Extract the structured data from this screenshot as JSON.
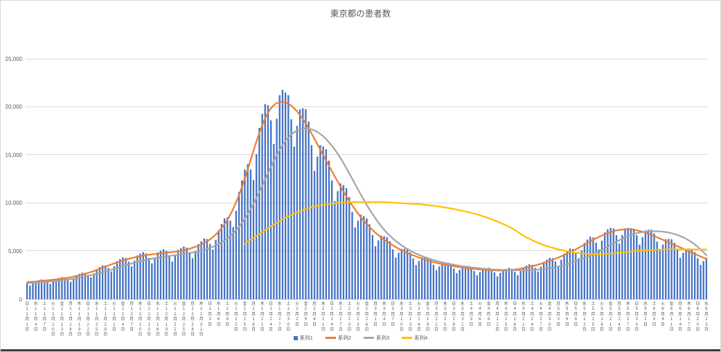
{
  "chart": {
    "title": "東京都の患者数",
    "text_color": "#595959",
    "grid_color": "#d9d9d9",
    "axis_color": "#d9d9d9",
    "border_color": "#d6d6d6",
    "bottom_edge_color": "#3b3b3b",
    "y_axis_labels": [
      "0",
      "5,000",
      "10,000",
      "15,000",
      "20,000",
      "25,000"
    ]
  },
  "chart_data": {
    "type": "bar+line",
    "title": "東京都の患者数",
    "ylim": [
      0,
      25000
    ],
    "y_ticks": [
      0,
      5000,
      10000,
      15000,
      20000,
      25000
    ],
    "grid": true,
    "legend_position": "bottom",
    "x_unit": "day",
    "x_tick_interval_days": 3,
    "x_ticks": [
      [
        "日",
        11,
        1
      ],
      [
        "水",
        11,
        4
      ],
      [
        "土",
        11,
        7
      ],
      [
        "火",
        11,
        10
      ],
      [
        "金",
        11,
        13
      ],
      [
        "月",
        11,
        16
      ],
      [
        "木",
        11,
        19
      ],
      [
        "日",
        11,
        22
      ],
      [
        "水",
        11,
        25
      ],
      [
        "土",
        11,
        28
      ],
      [
        "火",
        12,
        1
      ],
      [
        "金",
        12,
        4
      ],
      [
        "月",
        12,
        7
      ],
      [
        "木",
        12,
        10
      ],
      [
        "日",
        12,
        13
      ],
      [
        "水",
        12,
        16
      ],
      [
        "土",
        12,
        19
      ],
      [
        "火",
        12,
        22
      ],
      [
        "金",
        12,
        25
      ],
      [
        "月",
        12,
        28
      ],
      [
        "木",
        12,
        31
      ],
      [
        "日",
        1,
        3
      ],
      [
        "水",
        1,
        6
      ],
      [
        "土",
        1,
        9
      ],
      [
        "火",
        1,
        12
      ],
      [
        "金",
        1,
        15
      ],
      [
        "月",
        1,
        18
      ],
      [
        "木",
        1,
        21
      ],
      [
        "日",
        1,
        24
      ],
      [
        "水",
        1,
        27
      ],
      [
        "土",
        1,
        30
      ],
      [
        "火",
        2,
        2
      ],
      [
        "金",
        2,
        5
      ],
      [
        "月",
        2,
        8
      ],
      [
        "木",
        2,
        11
      ],
      [
        "日",
        2,
        14
      ],
      [
        "水",
        2,
        17
      ],
      [
        "土",
        2,
        20
      ],
      [
        "火",
        2,
        23
      ],
      [
        "金",
        2,
        26
      ],
      [
        "月",
        3,
        1
      ],
      [
        "木",
        3,
        4
      ],
      [
        "日",
        3,
        7
      ],
      [
        "水",
        3,
        10
      ],
      [
        "土",
        3,
        13
      ],
      [
        "火",
        3,
        16
      ],
      [
        "金",
        3,
        19
      ],
      [
        "月",
        3,
        22
      ],
      [
        "木",
        3,
        25
      ],
      [
        "日",
        3,
        28
      ],
      [
        "水",
        3,
        31
      ],
      [
        "土",
        4,
        3
      ],
      [
        "火",
        4,
        6
      ],
      [
        "金",
        4,
        9
      ],
      [
        "月",
        4,
        12
      ],
      [
        "木",
        4,
        15
      ],
      [
        "日",
        4,
        18
      ],
      [
        "水",
        4,
        21
      ],
      [
        "土",
        4,
        24
      ],
      [
        "火",
        4,
        27
      ],
      [
        "金",
        4,
        30
      ],
      [
        "月",
        5,
        3
      ],
      [
        "木",
        5,
        6
      ],
      [
        "日",
        5,
        9
      ],
      [
        "水",
        5,
        12
      ],
      [
        "土",
        5,
        15
      ],
      [
        "火",
        5,
        18
      ],
      [
        "金",
        5,
        21
      ],
      [
        "月",
        5,
        24
      ],
      [
        "木",
        5,
        27
      ],
      [
        "日",
        5,
        30
      ],
      [
        "水",
        6,
        2
      ],
      [
        "土",
        6,
        5
      ],
      [
        "火",
        6,
        8
      ],
      [
        "金",
        6,
        11
      ],
      [
        "月",
        6,
        14
      ],
      [
        "木",
        6,
        17
      ],
      [
        "日",
        6,
        20
      ],
      [
        "水",
        6,
        23
      ]
    ],
    "bar_series": {
      "name": "系列1",
      "color": "#4472C4",
      "x_step_days": 1,
      "values": [
        1670,
        1450,
        1690,
        1910,
        2000,
        2070,
        2030,
        1840,
        1610,
        1890,
        2150,
        2240,
        2320,
        2290,
        2090,
        1840,
        2180,
        2510,
        2650,
        2790,
        2770,
        2560,
        2280,
        2710,
        3140,
        3360,
        3550,
        3540,
        3270,
        2910,
        3450,
        3970,
        4190,
        4370,
        4300,
        3920,
        3440,
        4020,
        4570,
        4770,
        4910,
        4780,
        4320,
        3750,
        4340,
        4890,
        5070,
        5200,
        5040,
        4540,
        3930,
        4550,
        5150,
        5350,
        5510,
        5390,
        4900,
        4280,
        5030,
        5750,
        6040,
        6340,
        6270,
        5770,
        5170,
        6190,
        7210,
        7840,
        8420,
        8530,
        8180,
        7520,
        9200,
        11160,
        12370,
        13500,
        14040,
        13490,
        12400,
        15090,
        17820,
        19290,
        20300,
        20180,
        18600,
        16160,
        18770,
        21220,
        21760,
        21500,
        21220,
        18720,
        15890,
        18030,
        19740,
        19860,
        19760,
        18480,
        16030,
        13360,
        14840,
        16030,
        15900,
        15590,
        14420,
        12370,
        10210,
        11250,
        12050,
        11870,
        11560,
        10610,
        9080,
        7470,
        8190,
        8790,
        8660,
        8420,
        7800,
        6700,
        5520,
        6130,
        6630,
        6570,
        6480,
        6030,
        5210,
        4350,
        4850,
        5250,
        5270,
        5220,
        4890,
        4260,
        3570,
        4000,
        4380,
        4400,
        4370,
        4130,
        3610,
        3040,
        3430,
        3780,
        3820,
        3830,
        3640,
        3210,
        2720,
        3080,
        3400,
        3460,
        3490,
        3330,
        2950,
        2510,
        2850,
        3180,
        3250,
        3290,
        3150,
        2810,
        2400,
        2760,
        3090,
        3180,
        3280,
        3190,
        2880,
        2520,
        2940,
        3350,
        3520,
        3650,
        3590,
        3290,
        2890,
        3400,
        3910,
        4130,
        4320,
        4280,
        3940,
        3480,
        4120,
        4760,
        5040,
        5290,
        5250,
        4840,
        4290,
        5090,
        5870,
        6220,
        6520,
        6450,
        5910,
        5200,
        6120,
        6970,
        7300,
        7420,
        7370,
        6670,
        5800,
        6690,
        7380,
        7440,
        7400,
        7360,
        6700,
        5690,
        6470,
        7160,
        7240,
        7250,
        6860,
        6010,
        5070,
        5700,
        6250,
        6290,
        6260,
        5890,
        5150,
        4320,
        4850,
        5290,
        5300,
        5260,
        4920,
        4280,
        3570,
        3990,
        4330
      ]
    },
    "line_series": [
      {
        "name": "系列2",
        "color": "#ED7D31",
        "x_step_days": 3,
        "values": [
          1800,
          1850,
          1950,
          2050,
          2150,
          2300,
          2500,
          2750,
          3050,
          3400,
          3750,
          4050,
          4300,
          4500,
          4650,
          4750,
          4850,
          4950,
          5100,
          5350,
          5700,
          6200,
          7000,
          8200,
          10000,
          12500,
          15500,
          18200,
          20000,
          20600,
          20400,
          19600,
          18300,
          16700,
          15000,
          13300,
          11700,
          10200,
          8900,
          7800,
          6900,
          6200,
          5600,
          5100,
          4700,
          4350,
          4050,
          3800,
          3600,
          3450,
          3300,
          3200,
          3100,
          3050,
          3000,
          3000,
          3100,
          3250,
          3450,
          3700,
          4000,
          4350,
          4750,
          5200,
          5700,
          6200,
          6650,
          7000,
          7250,
          7300,
          7200,
          6950,
          6600,
          6200,
          5800,
          5400,
          5000,
          4600,
          4200
        ]
      },
      {
        "name": "系列3",
        "color": "#A5A5A5",
        "x_step_days": 3,
        "values": [
          1700,
          1750,
          1820,
          1900,
          1990,
          2100,
          2250,
          2430,
          2650,
          2900,
          3180,
          3460,
          3730,
          3970,
          4170,
          4340,
          4480,
          4600,
          4720,
          4860,
          5050,
          5330,
          5720,
          6300,
          7150,
          8350,
          9900,
          11800,
          13800,
          15600,
          16900,
          17600,
          17800,
          17600,
          17000,
          16000,
          14700,
          13100,
          11400,
          9800,
          8400,
          7200,
          6300,
          5600,
          5050,
          4620,
          4280,
          4000,
          3780,
          3600,
          3450,
          3330,
          3230,
          3150,
          3090,
          3050,
          3030,
          3030,
          3060,
          3120,
          3220,
          3400,
          3650,
          3950,
          4300,
          4700,
          5150,
          5650,
          6150,
          6600,
          6900,
          7050,
          7100,
          7050,
          6900,
          6600,
          6150,
          5500,
          4600
        ]
      },
      {
        "name": "系列4",
        "color": "#FFC000",
        "x_step_days": 3,
        "values": [
          null,
          null,
          null,
          null,
          null,
          null,
          null,
          null,
          null,
          null,
          null,
          null,
          null,
          null,
          null,
          null,
          null,
          null,
          null,
          null,
          null,
          null,
          null,
          null,
          null,
          5800,
          6400,
          7000,
          7600,
          8150,
          8650,
          9050,
          9400,
          9650,
          9850,
          9950,
          10050,
          10100,
          10100,
          10100,
          10100,
          10100,
          10050,
          10000,
          9950,
          9900,
          9800,
          9700,
          9550,
          9400,
          9200,
          9000,
          8750,
          8450,
          8100,
          7700,
          7250,
          6600,
          6150,
          5750,
          5450,
          5200,
          5000,
          4850,
          4750,
          4700,
          4700,
          4750,
          4850,
          4950,
          5050,
          5100,
          5150,
          5200,
          5200,
          5200,
          5200,
          5200,
          5200
        ]
      }
    ]
  }
}
